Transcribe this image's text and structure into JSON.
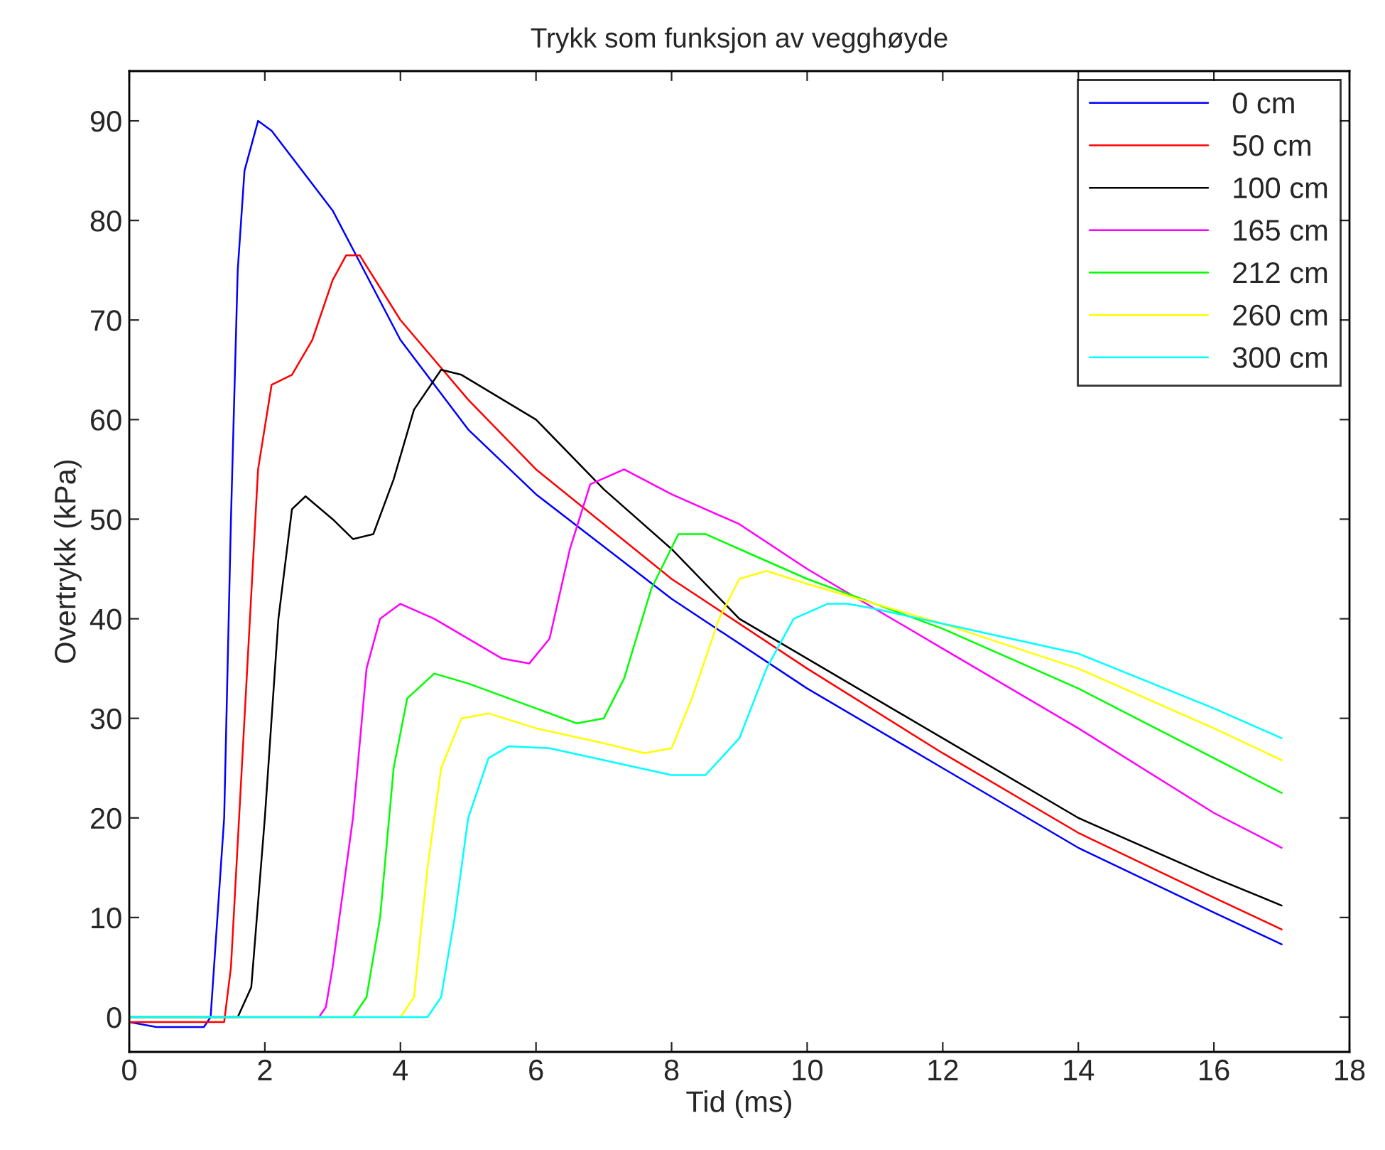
{
  "chart_data": {
    "type": "line",
    "title": "Trykk som funksjon av vegghøyde",
    "xlabel": "Tid (ms)",
    "ylabel": "Overtrykk (kPa)",
    "xlim": [
      0,
      18
    ],
    "xticks": [
      0,
      2,
      4,
      6,
      8,
      10,
      12,
      14,
      16,
      18
    ],
    "ylim": [
      -3.5,
      95
    ],
    "yticks": [
      0,
      10,
      20,
      30,
      40,
      50,
      60,
      70,
      80,
      90
    ],
    "grid": false,
    "legend": "top right",
    "line_style": "solid",
    "series": [
      {
        "name": "0 cm",
        "color": "#0000ff",
        "x": [
          0,
          0.4,
          1.1,
          1.2,
          1.4,
          1.5,
          1.6,
          1.7,
          1.9,
          2.1,
          3,
          4,
          5,
          6,
          8,
          10,
          12,
          14,
          16,
          17
        ],
        "values": [
          -0.5,
          -1,
          -1,
          0,
          20,
          50,
          75,
          85,
          90,
          89,
          81,
          68,
          59,
          52.5,
          42,
          33,
          25,
          17,
          10.5,
          7.3
        ]
      },
      {
        "name": "50 cm",
        "color": "#ff0000",
        "x": [
          0,
          1.4,
          1.5,
          1.7,
          1.9,
          2.1,
          2.4,
          2.7,
          3.0,
          3.2,
          3.4,
          4,
          5,
          6,
          8,
          10,
          12,
          14,
          16,
          17
        ],
        "values": [
          -0.5,
          -0.5,
          5,
          30,
          55,
          63.5,
          64.5,
          68,
          74,
          76.5,
          76.5,
          70,
          62,
          55,
          44,
          35,
          26.5,
          18.5,
          12,
          8.8
        ]
      },
      {
        "name": "100 cm",
        "color": "#000000",
        "x": [
          0,
          1.6,
          1.8,
          2.0,
          2.2,
          2.4,
          2.6,
          3,
          3.3,
          3.6,
          3.9,
          4.2,
          4.6,
          4.9,
          6,
          7,
          8,
          9,
          10,
          12,
          14,
          16,
          17
        ],
        "values": [
          0,
          0,
          3,
          20,
          40,
          51,
          52.3,
          50,
          48,
          48.5,
          54,
          61,
          65,
          64.5,
          60,
          53,
          47,
          40,
          36,
          28,
          20,
          14,
          11.2
        ]
      },
      {
        "name": "165 cm",
        "color": "#ff00ff",
        "x": [
          0,
          2.8,
          2.9,
          3.0,
          3.3,
          3.5,
          3.7,
          4.0,
          4.5,
          5,
          5.5,
          5.9,
          6.2,
          6.5,
          6.8,
          7.3,
          8,
          9,
          10,
          12,
          14,
          16,
          17
        ],
        "values": [
          0,
          0,
          1,
          5,
          20,
          35,
          40,
          41.5,
          40,
          38,
          36,
          35.5,
          38,
          47,
          53.5,
          55,
          52.5,
          49.5,
          45,
          37,
          29,
          20.5,
          17
        ]
      },
      {
        "name": "212 cm",
        "color": "#00ff00",
        "x": [
          0,
          3.3,
          3.5,
          3.7,
          3.9,
          4.1,
          4.5,
          5,
          6,
          6.6,
          7,
          7.3,
          7.7,
          8.1,
          8.5,
          9,
          10,
          12,
          14,
          16,
          17
        ],
        "values": [
          0,
          0,
          2,
          10,
          25,
          32,
          34.5,
          33.5,
          31,
          29.5,
          30,
          34,
          43,
          48.5,
          48.5,
          47,
          44,
          39,
          33,
          26,
          22.5
        ]
      },
      {
        "name": "260 cm",
        "color": "#ffff00",
        "x": [
          0,
          4,
          4.2,
          4.4,
          4.6,
          4.9,
          5.3,
          6,
          7,
          7.6,
          8,
          8.3,
          8.7,
          9.0,
          9.4,
          10,
          11,
          12,
          14,
          16,
          17
        ],
        "values": [
          0,
          0,
          2,
          15,
          25,
          30,
          30.5,
          29,
          27.5,
          26.5,
          27,
          32,
          40,
          44,
          44.8,
          43.5,
          41.5,
          39.5,
          35,
          29,
          25.8
        ]
      },
      {
        "name": "300 cm",
        "color": "#00ffff",
        "x": [
          0,
          4.4,
          4.6,
          4.8,
          5.0,
          5.3,
          5.6,
          6.2,
          7,
          8,
          8.5,
          9,
          9.4,
          9.8,
          10.3,
          10.6,
          11,
          12,
          14,
          16,
          17
        ],
        "values": [
          0,
          0,
          2,
          10,
          20,
          26,
          27.2,
          27,
          25.8,
          24.3,
          24.3,
          28,
          35,
          40,
          41.5,
          41.5,
          41,
          39.5,
          36.5,
          31,
          28
        ]
      }
    ]
  }
}
